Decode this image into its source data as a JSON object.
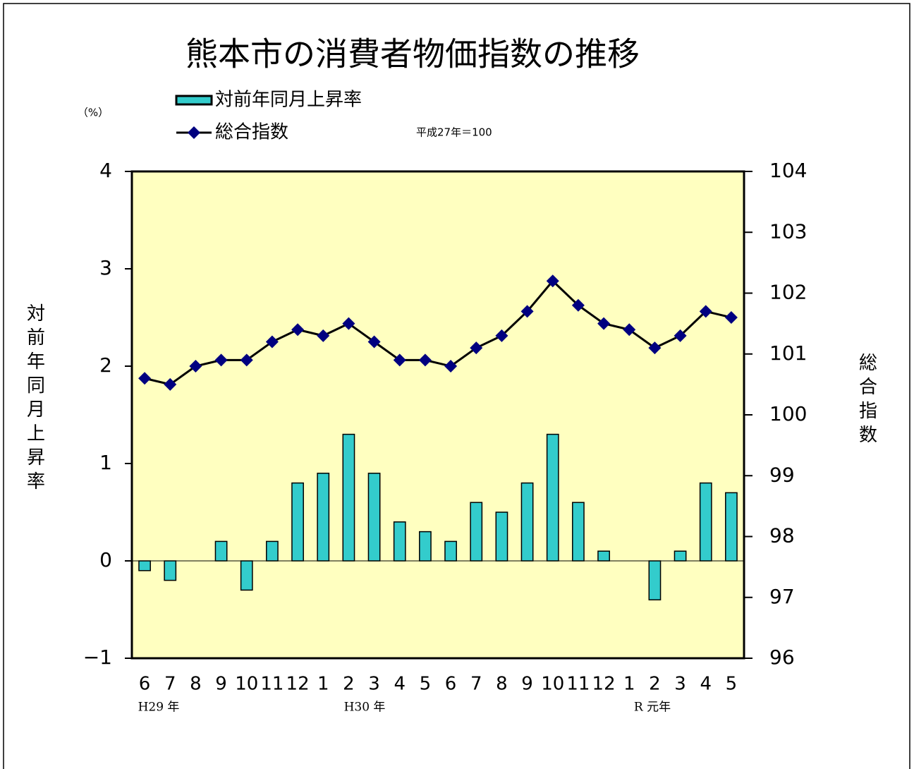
{
  "chart_data": {
    "type": "bar-line",
    "title": "熊本市の消費者物価指数の推移",
    "unit_label": "（%）",
    "base_note": "平成27年＝100",
    "ylabel": "対前年同月上昇率",
    "y2label": "総合指数",
    "categories": [
      "6",
      "7",
      "8",
      "9",
      "10",
      "11",
      "12",
      "1",
      "2",
      "3",
      "4",
      "5",
      "6",
      "7",
      "8",
      "9",
      "10",
      "11",
      "12",
      "1",
      "2",
      "3",
      "4",
      "5"
    ],
    "year_labels": [
      "H29 年",
      "H30 年",
      "R 元年"
    ],
    "series": [
      {
        "name": "対前年同月上昇率",
        "type": "bar",
        "color": "#33cccc",
        "values": [
          -0.1,
          -0.2,
          0,
          0.2,
          -0.3,
          0.2,
          0.8,
          0.9,
          1.3,
          0.9,
          0.4,
          0.3,
          0.2,
          0.6,
          0.5,
          0.8,
          1.3,
          0.6,
          0.1,
          0,
          -0.4,
          0.1,
          0.8,
          0.7
        ]
      },
      {
        "name": "総合指数",
        "type": "line",
        "axis": "y2",
        "color": "#000080",
        "values": [
          100.6,
          100.5,
          100.8,
          100.9,
          100.9,
          101.2,
          101.4,
          101.3,
          101.5,
          101.2,
          100.9,
          100.9,
          100.8,
          101.1,
          101.3,
          101.7,
          102.2,
          101.8,
          101.5,
          101.4,
          101.1,
          101.3,
          101.7,
          101.6
        ]
      }
    ],
    "ylim": [
      -1,
      4
    ],
    "yticks": [
      {
        "value": -1,
        "label": "−1"
      },
      0,
      1,
      2,
      3,
      4
    ],
    "y2lim": [
      96,
      104
    ],
    "y2ticks": [
      96,
      97,
      98,
      99,
      100,
      101,
      102,
      103,
      104
    ],
    "grid": false,
    "plot_background": "#ffffc0"
  }
}
